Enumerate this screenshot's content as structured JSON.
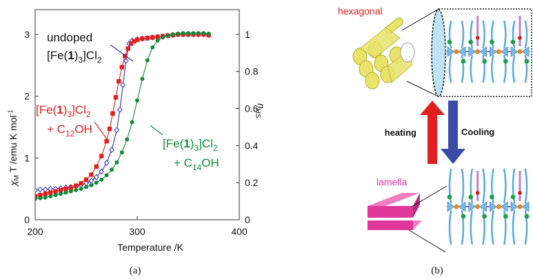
{
  "colors": {
    "blue": "#2b2ba8",
    "red": "#e02020",
    "green": "#138a3a",
    "magenta": "#e0379a",
    "yellow": "#e8e36a",
    "lightblue": "#bfe3f5"
  },
  "chart_data": {
    "type": "line",
    "xlabel": "Temperature  /K",
    "ylabel_left": "χ_M T /emu K mol⁻¹",
    "ylabel_right": "n_HS",
    "xlim": [
      200,
      400
    ],
    "ylim": [
      0,
      3.4
    ],
    "ylim_right": [
      0,
      1.133
    ],
    "x_ticks": [
      "200",
      "300",
      "400"
    ],
    "y_ticks": [
      "0",
      "1",
      "2",
      "3"
    ],
    "y_right_ticks": [
      "0",
      "0.2",
      "0.4",
      "0.6",
      "0.8",
      "1"
    ],
    "grid": false,
    "series": [
      {
        "name": "[Fe(1)3]Cl2",
        "color": "blue",
        "marker": "diamond",
        "x": [
          200,
          205,
          210,
          215,
          220,
          225,
          230,
          235,
          240,
          245,
          250,
          255,
          260,
          265,
          270,
          275,
          280,
          283,
          286,
          289,
          292,
          295,
          300,
          305,
          310,
          315,
          320,
          325,
          330,
          335,
          340,
          345,
          350,
          355,
          360,
          365,
          370
        ],
        "y": [
          0.48,
          0.49,
          0.49,
          0.5,
          0.5,
          0.51,
          0.52,
          0.53,
          0.54,
          0.56,
          0.59,
          0.63,
          0.69,
          0.78,
          0.92,
          1.13,
          1.45,
          1.78,
          2.18,
          2.57,
          2.85,
          2.9,
          2.92,
          2.93,
          2.94,
          2.95,
          2.96,
          2.97,
          2.98,
          2.99,
          3.0,
          3.0,
          3.0,
          3.0,
          3.0,
          3.0,
          2.99
        ]
      },
      {
        "name": "[Fe(1)3]Cl2 + C12OH",
        "color": "red",
        "marker": "square",
        "x": [
          200,
          205,
          210,
          215,
          220,
          225,
          230,
          235,
          240,
          245,
          250,
          255,
          260,
          265,
          270,
          273,
          276,
          279,
          282,
          285,
          288,
          291,
          294,
          297,
          300,
          305,
          310,
          315,
          320,
          325,
          330,
          335,
          340,
          345,
          350,
          355,
          360,
          365,
          370
        ],
        "y": [
          0.38,
          0.4,
          0.42,
          0.44,
          0.46,
          0.48,
          0.5,
          0.52,
          0.55,
          0.59,
          0.65,
          0.73,
          0.86,
          1.03,
          1.27,
          1.47,
          1.72,
          1.98,
          2.24,
          2.47,
          2.65,
          2.77,
          2.85,
          2.89,
          2.91,
          2.93,
          2.94,
          2.95,
          2.96,
          2.97,
          2.98,
          2.99,
          3.0,
          3.0,
          3.0,
          3.0,
          3.0,
          3.0,
          2.99
        ]
      },
      {
        "name": "[Fe(1)3]Cl2 + C14OH",
        "color": "green",
        "marker": "circle",
        "x": [
          200,
          205,
          210,
          215,
          220,
          225,
          230,
          235,
          240,
          245,
          250,
          255,
          260,
          265,
          270,
          275,
          280,
          285,
          290,
          295,
          300,
          305,
          310,
          315,
          320,
          325,
          330,
          335,
          340,
          345,
          350,
          355,
          360,
          365,
          370
        ],
        "y": [
          0.34,
          0.35,
          0.36,
          0.38,
          0.4,
          0.42,
          0.44,
          0.46,
          0.48,
          0.5,
          0.53,
          0.56,
          0.6,
          0.65,
          0.72,
          0.81,
          0.93,
          1.09,
          1.3,
          1.58,
          1.93,
          2.28,
          2.58,
          2.79,
          2.9,
          2.95,
          2.98,
          3.0,
          3.01,
          3.02,
          3.02,
          3.02,
          3.02,
          3.02,
          3.01
        ]
      }
    ],
    "annotations": {
      "undoped_line1": "undoped",
      "undoped_line2": "[Fe(",
      "undoped_bold": "1",
      "undoped_line2_end": ")",
      "sub3": "3",
      "cl": "]Cl",
      "sub2": "2",
      "c12_plus": "+ C",
      "c12_sub": "12",
      "c12_end": "OH",
      "c14_plus": "+ C",
      "c14_sub": "14",
      "c14_end": "OH"
    }
  },
  "panel_labels": {
    "a": "(a)",
    "b": "(b)"
  },
  "schematic": {
    "hexagonal_label": "hexagonal",
    "lamella_label": "lamella",
    "heating_label": "heating",
    "cooling_label": "Cooling"
  }
}
